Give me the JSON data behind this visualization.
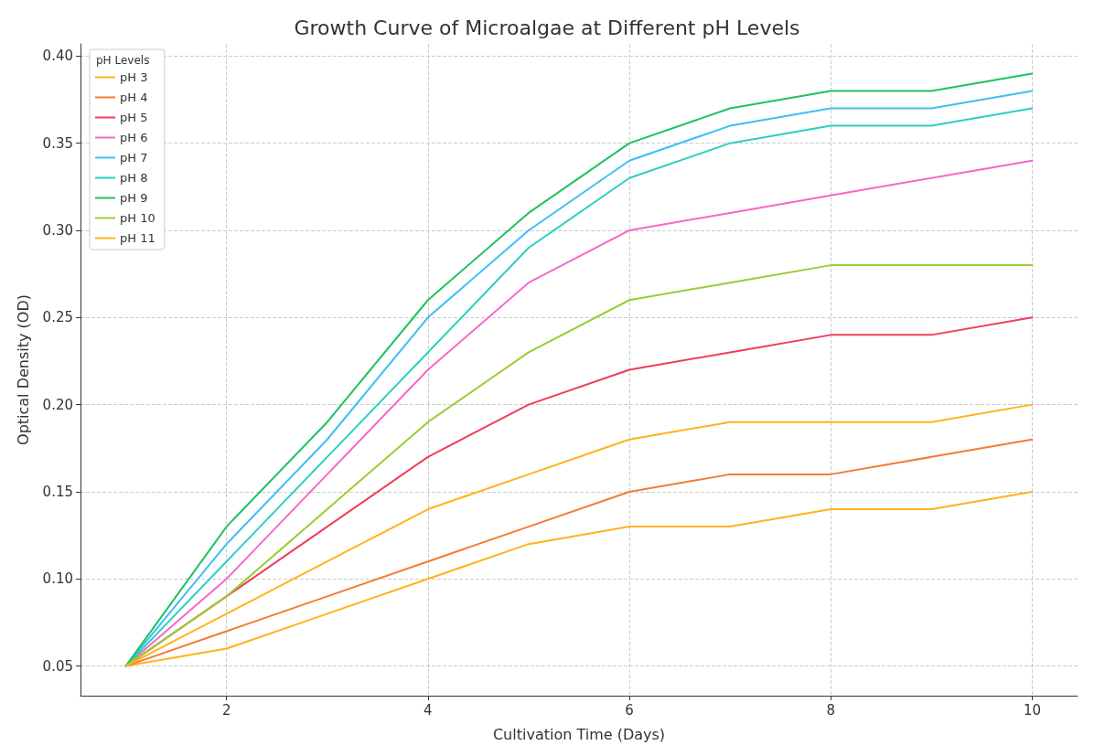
{
  "chart_data": {
    "type": "line",
    "title": "Growth Curve of Microalgae at Different pH Levels",
    "xlabel": "Cultivation Time (Days)",
    "ylabel": "Optical Density (OD)",
    "legend_title": "pH Levels",
    "x": [
      1,
      2,
      3,
      4,
      5,
      6,
      7,
      8,
      9,
      10
    ],
    "series": [
      {
        "name": "pH 3",
        "color": "#ffb31a",
        "values": [
          0.05,
          0.06,
          0.08,
          0.1,
          0.12,
          0.13,
          0.13,
          0.14,
          0.14,
          0.15
        ]
      },
      {
        "name": "pH 4",
        "color": "#f57a35",
        "values": [
          0.05,
          0.07,
          0.09,
          0.11,
          0.13,
          0.15,
          0.16,
          0.16,
          0.17,
          0.18
        ]
      },
      {
        "name": "pH 5",
        "color": "#f03c5a",
        "values": [
          0.05,
          0.09,
          0.13,
          0.17,
          0.2,
          0.22,
          0.23,
          0.24,
          0.24,
          0.25
        ]
      },
      {
        "name": "pH 6",
        "color": "#f766c8",
        "values": [
          0.05,
          0.1,
          0.16,
          0.22,
          0.27,
          0.3,
          0.31,
          0.32,
          0.33,
          0.34
        ]
      },
      {
        "name": "pH 7",
        "color": "#3ebef5",
        "values": [
          0.05,
          0.12,
          0.18,
          0.25,
          0.3,
          0.34,
          0.36,
          0.37,
          0.37,
          0.38
        ]
      },
      {
        "name": "pH 8",
        "color": "#2ccfc0",
        "values": [
          0.05,
          0.11,
          0.17,
          0.23,
          0.29,
          0.33,
          0.35,
          0.36,
          0.36,
          0.37
        ]
      },
      {
        "name": "pH 9",
        "color": "#1fc25e",
        "values": [
          0.05,
          0.13,
          0.19,
          0.26,
          0.31,
          0.35,
          0.37,
          0.38,
          0.38,
          0.39
        ]
      },
      {
        "name": "pH 10",
        "color": "#9acd32",
        "values": [
          0.05,
          0.09,
          0.14,
          0.19,
          0.23,
          0.26,
          0.27,
          0.28,
          0.28,
          0.28
        ]
      },
      {
        "name": "pH 11",
        "color": "#ffb31a",
        "values": [
          0.05,
          0.08,
          0.11,
          0.14,
          0.16,
          0.18,
          0.19,
          0.19,
          0.19,
          0.2
        ]
      }
    ],
    "xlim": [
      0.55,
      10.45
    ],
    "xticks": [
      2,
      4,
      6,
      8,
      10
    ],
    "ylim": [
      0.033,
      0.407
    ],
    "yticks": [
      {
        "value": 0.05,
        "label": "0.05"
      },
      {
        "value": 0.1,
        "label": "0.10"
      },
      {
        "value": 0.15,
        "label": "0.15"
      },
      {
        "value": 0.2,
        "label": "0.20"
      },
      {
        "value": 0.25,
        "label": "0.25"
      },
      {
        "value": 0.3,
        "label": "0.30"
      },
      {
        "value": 0.35,
        "label": "0.35"
      },
      {
        "value": 0.4,
        "label": "0.40"
      }
    ],
    "grid": true,
    "legend": "top left",
    "marker": "none",
    "line_style": "solid"
  }
}
